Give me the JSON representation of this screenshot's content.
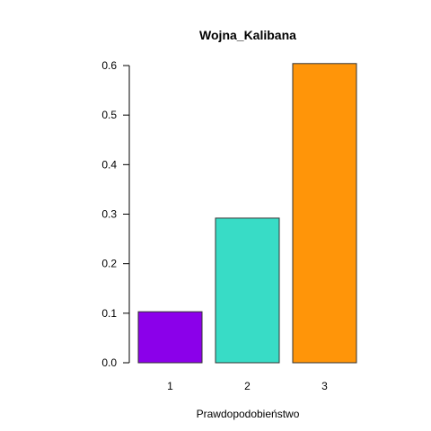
{
  "chart_data": {
    "type": "bar",
    "title": "Wojna_Kalibana",
    "xlabel": "Prawdopodobieństwo",
    "ylabel": "",
    "categories": [
      "1",
      "2",
      "3"
    ],
    "values": [
      0.103,
      0.292,
      0.604
    ],
    "colors": [
      "#8b00ea",
      "#38dcc6",
      "#ff9509"
    ],
    "ylim": [
      0,
      0.6
    ],
    "yticks": [
      "0.0",
      "0.1",
      "0.2",
      "0.3",
      "0.4",
      "0.5",
      "0.6"
    ],
    "grid": false,
    "legend": "none"
  }
}
